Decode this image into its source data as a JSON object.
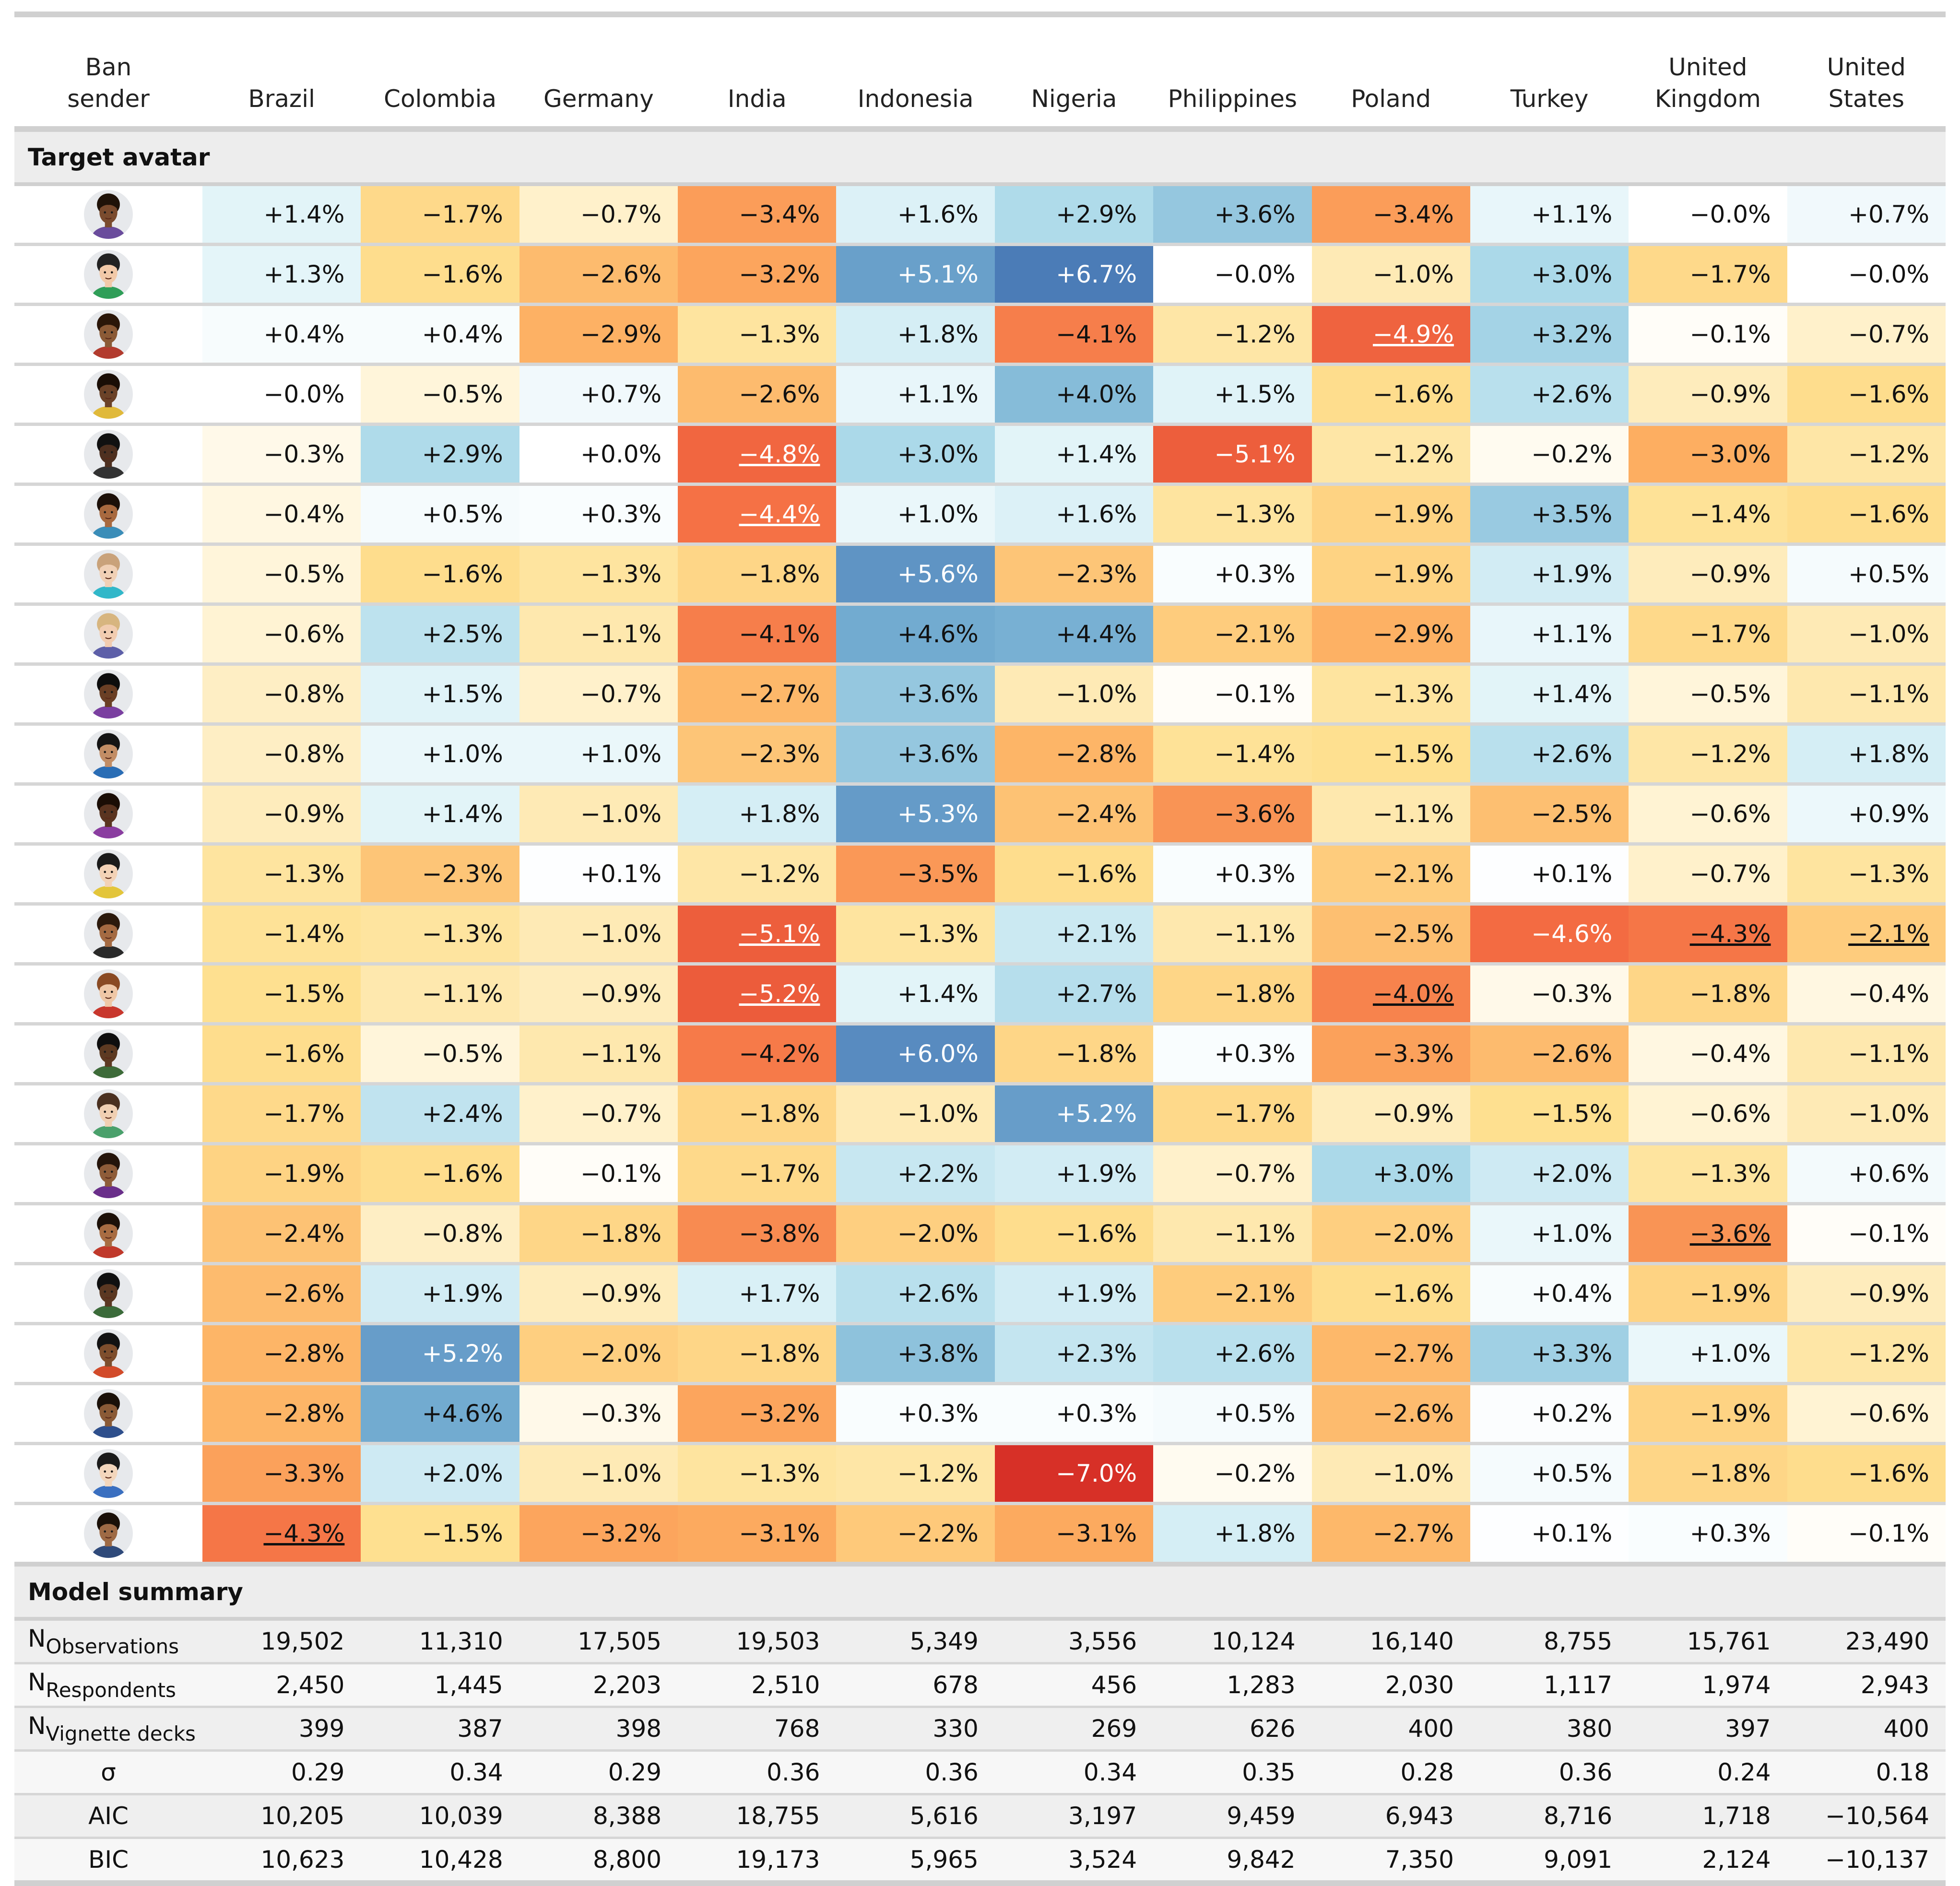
{
  "header": {
    "first_col": "Ban\nsender",
    "countries": [
      "Brazil",
      "Colombia",
      "Germany",
      "India",
      "Indonesia",
      "Nigeria",
      "Philippines",
      "Poland",
      "Turkey",
      "United\nKingdom",
      "United\nStates"
    ]
  },
  "section_avatar": "Target avatar",
  "section_summary": "Model summary",
  "avatars": [
    {
      "icon": "avatar-1-icon",
      "skin": "#7a4b2e",
      "hair": "#1f1208",
      "shirt": "#6a4c9c"
    },
    {
      "icon": "avatar-2-icon",
      "skin": "#f2c9a8",
      "hair": "#222222",
      "shirt": "#2f9e58"
    },
    {
      "icon": "avatar-3-icon",
      "skin": "#8b5a36",
      "hair": "#2a1608",
      "shirt": "#b23b2e"
    },
    {
      "icon": "avatar-4-icon",
      "skin": "#6b4228",
      "hair": "#1a0e06",
      "shirt": "#e0b93a"
    },
    {
      "icon": "avatar-5-icon",
      "skin": "#4e3020",
      "hair": "#111111",
      "shirt": "#333333"
    },
    {
      "icon": "avatar-6-icon",
      "skin": "#a8693f",
      "hair": "#1c1009",
      "shirt": "#3a8db8"
    },
    {
      "icon": "avatar-7-icon",
      "skin": "#f0d0b5",
      "hair": "#c9a27a",
      "shirt": "#31b7c9"
    },
    {
      "icon": "avatar-8-icon",
      "skin": "#f1ccb0",
      "hair": "#d7b57f",
      "shirt": "#5d5fa8"
    },
    {
      "icon": "avatar-9-icon",
      "skin": "#6a3f25",
      "hair": "#0d0d0d",
      "shirt": "#7a3fa0"
    },
    {
      "icon": "avatar-10-icon",
      "skin": "#c28d65",
      "hair": "#141414",
      "shirt": "#2a6db5"
    },
    {
      "icon": "avatar-11-icon",
      "skin": "#5a3420",
      "hair": "#1a0d05",
      "shirt": "#8a3da0"
    },
    {
      "icon": "avatar-12-icon",
      "skin": "#f3d2b6",
      "hair": "#1a1a1a",
      "shirt": "#e3c53a"
    },
    {
      "icon": "avatar-13-icon",
      "skin": "#a46a42",
      "hair": "#2b190c",
      "shirt": "#2a2a2a"
    },
    {
      "icon": "avatar-14-icon",
      "skin": "#efc7a6",
      "hair": "#8a4a23",
      "shirt": "#c8372d"
    },
    {
      "icon": "avatar-15-icon",
      "skin": "#5d3a22",
      "hair": "#0e0e0e",
      "shirt": "#3d6b39"
    },
    {
      "icon": "avatar-16-icon",
      "skin": "#f0cfb2",
      "hair": "#4a3020",
      "shirt": "#4aa06b"
    },
    {
      "icon": "avatar-17-icon",
      "skin": "#8e5c39",
      "hair": "#24140a",
      "shirt": "#6a2f8a"
    },
    {
      "icon": "avatar-18-icon",
      "skin": "#a86c42",
      "hair": "#1c1008",
      "shirt": "#c0392b"
    },
    {
      "icon": "avatar-19-icon",
      "skin": "#5b3822",
      "hair": "#101010",
      "shirt": "#3b6b3a"
    },
    {
      "icon": "avatar-20-icon",
      "skin": "#7e4e2d",
      "hair": "#121212",
      "shirt": "#d24b2a"
    },
    {
      "icon": "avatar-21-icon",
      "skin": "#8a5a36",
      "hair": "#1a1008",
      "shirt": "#2e4f8c"
    },
    {
      "icon": "avatar-22-icon",
      "skin": "#f3d6bc",
      "hair": "#1a1a1a",
      "shirt": "#3a6fc0"
    },
    {
      "icon": "avatar-23-icon",
      "skin": "#9e6a45",
      "hair": "#1a1008",
      "shirt": "#2f4a7a"
    }
  ],
  "rows": [
    [
      "+1.4%",
      "−1.7%",
      "−0.7%",
      "−3.4%",
      "+1.6%",
      "+2.9%",
      "+3.6%",
      "−3.4%",
      "+1.1%",
      "−0.0%",
      "+0.7%"
    ],
    [
      "+1.3%",
      "−1.6%",
      "−2.6%",
      "−3.2%",
      "+5.1%",
      "+6.7%",
      "−0.0%",
      "−1.0%",
      "+3.0%",
      "−1.7%",
      "−0.0%"
    ],
    [
      "+0.4%",
      "+0.4%",
      "−2.9%",
      "−1.3%",
      "+1.8%",
      "−4.1%",
      "−1.2%",
      "−4.9%",
      "+3.2%",
      "−0.1%",
      "−0.7%"
    ],
    [
      "−0.0%",
      "−0.5%",
      "+0.7%",
      "−2.6%",
      "+1.1%",
      "+4.0%",
      "+1.5%",
      "−1.6%",
      "+2.6%",
      "−0.9%",
      "−1.6%"
    ],
    [
      "−0.3%",
      "+2.9%",
      "+0.0%",
      "−4.8%",
      "+3.0%",
      "+1.4%",
      "−5.1%",
      "−1.2%",
      "−0.2%",
      "−3.0%",
      "−1.2%"
    ],
    [
      "−0.4%",
      "+0.5%",
      "+0.3%",
      "−4.4%",
      "+1.0%",
      "+1.6%",
      "−1.3%",
      "−1.9%",
      "+3.5%",
      "−1.4%",
      "−1.6%"
    ],
    [
      "−0.5%",
      "−1.6%",
      "−1.3%",
      "−1.8%",
      "+5.6%",
      "−2.3%",
      "+0.3%",
      "−1.9%",
      "+1.9%",
      "−0.9%",
      "+0.5%"
    ],
    [
      "−0.6%",
      "+2.5%",
      "−1.1%",
      "−4.1%",
      "+4.6%",
      "+4.4%",
      "−2.1%",
      "−2.9%",
      "+1.1%",
      "−1.7%",
      "−1.0%"
    ],
    [
      "−0.8%",
      "+1.5%",
      "−0.7%",
      "−2.7%",
      "+3.6%",
      "−1.0%",
      "−0.1%",
      "−1.3%",
      "+1.4%",
      "−0.5%",
      "−1.1%"
    ],
    [
      "−0.8%",
      "+1.0%",
      "+1.0%",
      "−2.3%",
      "+3.6%",
      "−2.8%",
      "−1.4%",
      "−1.5%",
      "+2.6%",
      "−1.2%",
      "+1.8%"
    ],
    [
      "−0.9%",
      "+1.4%",
      "−1.0%",
      "+1.8%",
      "+5.3%",
      "−2.4%",
      "−3.6%",
      "−1.1%",
      "−2.5%",
      "−0.6%",
      "+0.9%"
    ],
    [
      "−1.3%",
      "−2.3%",
      "+0.1%",
      "−1.2%",
      "−3.5%",
      "−1.6%",
      "+0.3%",
      "−2.1%",
      "+0.1%",
      "−0.7%",
      "−1.3%"
    ],
    [
      "−1.4%",
      "−1.3%",
      "−1.0%",
      "−5.1%",
      "−1.3%",
      "+2.1%",
      "−1.1%",
      "−2.5%",
      "−4.6%",
      "−4.3%",
      "−2.1%"
    ],
    [
      "−1.5%",
      "−1.1%",
      "−0.9%",
      "−5.2%",
      "+1.4%",
      "+2.7%",
      "−1.8%",
      "−4.0%",
      "−0.3%",
      "−1.8%",
      "−0.4%"
    ],
    [
      "−1.6%",
      "−0.5%",
      "−1.1%",
      "−4.2%",
      "+6.0%",
      "−1.8%",
      "+0.3%",
      "−3.3%",
      "−2.6%",
      "−0.4%",
      "−1.1%"
    ],
    [
      "−1.7%",
      "+2.4%",
      "−0.7%",
      "−1.8%",
      "−1.0%",
      "+5.2%",
      "−1.7%",
      "−0.9%",
      "−1.5%",
      "−0.6%",
      "−1.0%"
    ],
    [
      "−1.9%",
      "−1.6%",
      "−0.1%",
      "−1.7%",
      "+2.2%",
      "+1.9%",
      "−0.7%",
      "+3.0%",
      "+2.0%",
      "−1.3%",
      "+0.6%"
    ],
    [
      "−2.4%",
      "−0.8%",
      "−1.8%",
      "−3.8%",
      "−2.0%",
      "−1.6%",
      "−1.1%",
      "−2.0%",
      "+1.0%",
      "−3.6%",
      "−0.1%"
    ],
    [
      "−2.6%",
      "+1.9%",
      "−0.9%",
      "+1.7%",
      "+2.6%",
      "+1.9%",
      "−2.1%",
      "−1.6%",
      "+0.4%",
      "−1.9%",
      "−0.9%"
    ],
    [
      "−2.8%",
      "+5.2%",
      "−2.0%",
      "−1.8%",
      "+3.8%",
      "+2.3%",
      "+2.6%",
      "−2.7%",
      "+3.3%",
      "+1.0%",
      "−1.2%"
    ],
    [
      "−2.8%",
      "+4.6%",
      "−0.3%",
      "−3.2%",
      "+0.3%",
      "+0.3%",
      "+0.5%",
      "−2.6%",
      "+0.2%",
      "−1.9%",
      "−0.6%"
    ],
    [
      "−3.3%",
      "+2.0%",
      "−1.0%",
      "−1.3%",
      "−1.2%",
      "−7.0%",
      "−0.2%",
      "−1.0%",
      "+0.5%",
      "−1.8%",
      "−1.6%"
    ],
    [
      "−4.3%",
      "−1.5%",
      "−3.2%",
      "−3.1%",
      "−2.2%",
      "−3.1%",
      "+1.8%",
      "−2.7%",
      "+0.1%",
      "+0.3%",
      "−0.1%"
    ]
  ],
  "underlined": [
    [
      2,
      7
    ],
    [
      4,
      3
    ],
    [
      5,
      3
    ],
    [
      12,
      3
    ],
    [
      12,
      9
    ],
    [
      12,
      10
    ],
    [
      13,
      3
    ],
    [
      13,
      7
    ],
    [
      17,
      9
    ],
    [
      22,
      0
    ]
  ],
  "summary": [
    {
      "label": "N",
      "sub": "Observations",
      "values": [
        "19,502",
        "11,310",
        "17,505",
        "19,503",
        "5,349",
        "3,556",
        "10,124",
        "16,140",
        "8,755",
        "15,761",
        "23,490"
      ]
    },
    {
      "label": "N",
      "sub": "Respondents",
      "values": [
        "2,450",
        "1,445",
        "2,203",
        "2,510",
        "678",
        "456",
        "1,283",
        "2,030",
        "1,117",
        "1,974",
        "2,943"
      ]
    },
    {
      "label": "N",
      "sub": "Vignette decks",
      "values": [
        "399",
        "387",
        "398",
        "768",
        "330",
        "269",
        "626",
        "400",
        "380",
        "397",
        "400"
      ]
    },
    {
      "label": "σ",
      "sub": "",
      "values": [
        "0.29",
        "0.34",
        "0.29",
        "0.36",
        "0.36",
        "0.34",
        "0.35",
        "0.28",
        "0.36",
        "0.24",
        "0.18"
      ]
    },
    {
      "label": "AIC",
      "sub": "",
      "values": [
        "10,205",
        "10,039",
        "8,388",
        "18,755",
        "5,616",
        "3,197",
        "9,459",
        "6,943",
        "8,716",
        "1,718",
        "−10,564"
      ]
    },
    {
      "label": "BIC",
      "sub": "",
      "values": [
        "10,623",
        "10,428",
        "8,800",
        "19,173",
        "5,965",
        "3,524",
        "9,842",
        "7,350",
        "9,091",
        "2,124",
        "−10,137"
      ]
    }
  ],
  "colors": {
    "neg_strong": "#d73027",
    "neg_mid": "#f46d43",
    "neg_light": "#fdae61",
    "neg_pale": "#fee090",
    "pos_pale": "#e0f3f8",
    "pos_light": "#abd9e9",
    "pos_mid": "#74add1",
    "pos_strong": "#4575b4",
    "rule": "#d0d0d0",
    "summary_bg": "#ededed"
  }
}
